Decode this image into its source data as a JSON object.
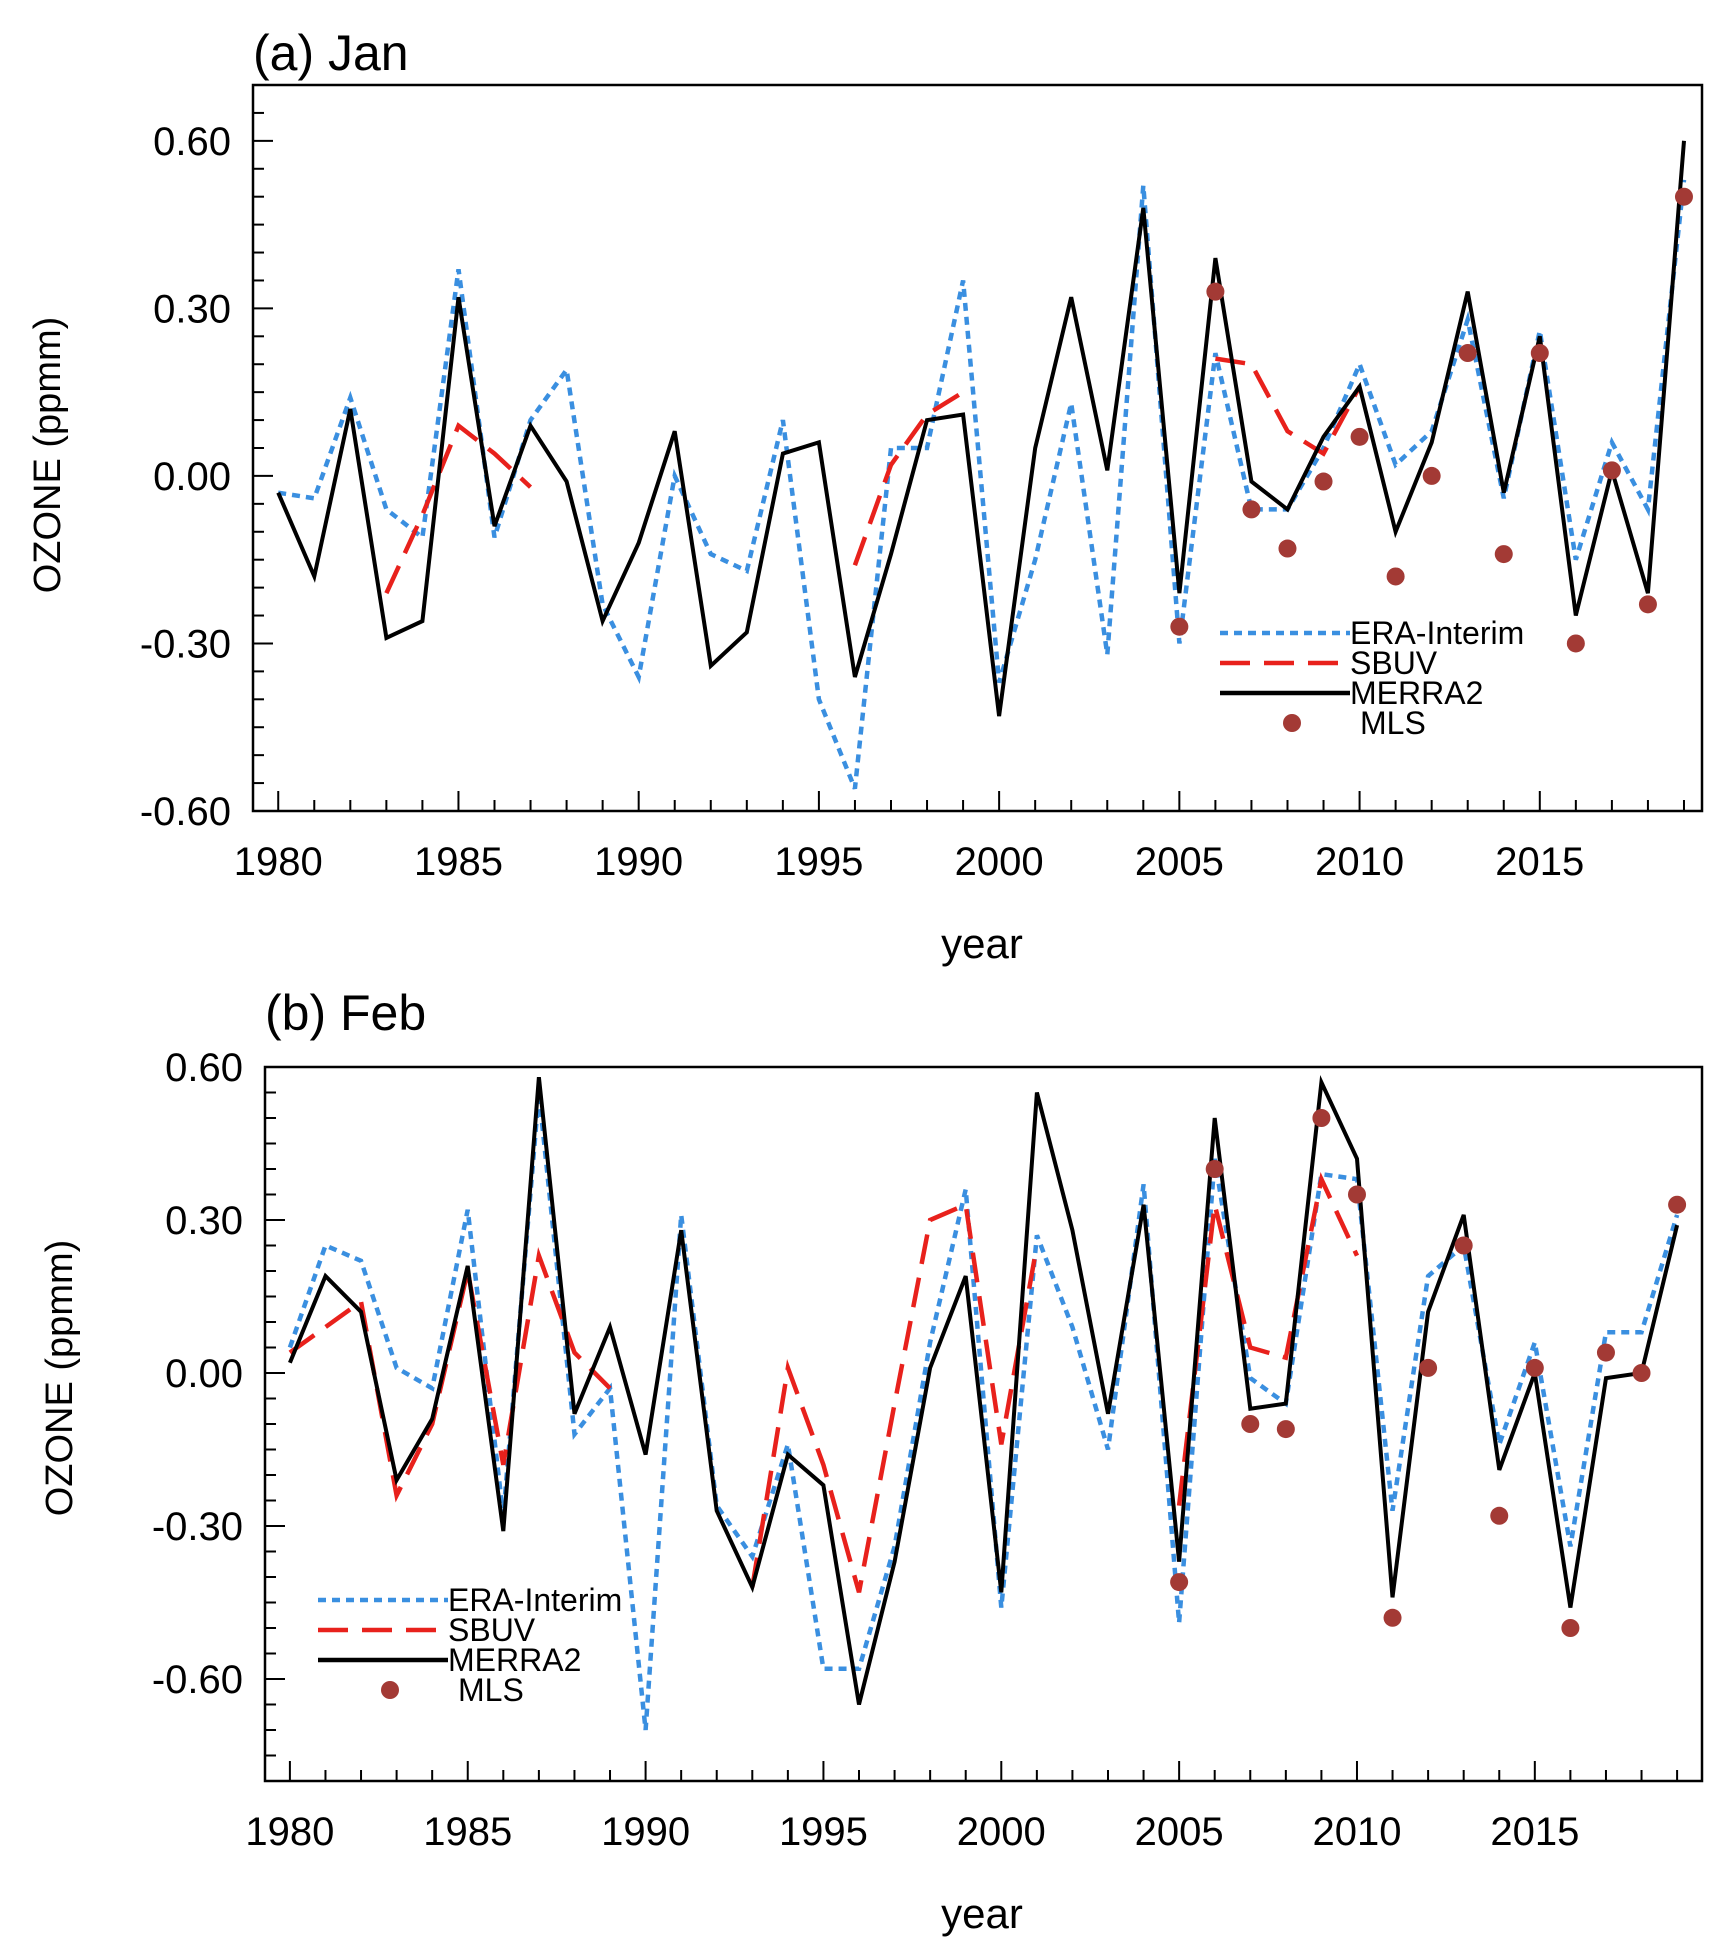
{
  "chart_data": [
    {
      "type": "line",
      "title": "(a) Jan",
      "xlabel": "year",
      "ylabel": "OZONE (ppmm)",
      "xlim": [
        1979.3,
        2019.5
      ],
      "ylim": [
        -0.6,
        0.7
      ],
      "xticks": [
        1980,
        1985,
        1990,
        1995,
        2000,
        2005,
        2010,
        2015
      ],
      "yticks": [
        0.6,
        0.3,
        0.0,
        -0.3,
        -0.6
      ],
      "ytick_labels": [
        "0.60",
        "0.30",
        "0.00",
        "-0.30",
        "-0.60"
      ],
      "legend_position": "bottom-right",
      "series": [
        {
          "name": "ERA-Interim",
          "color": "#3a8fe0",
          "style": "dotted",
          "x": [
            1980,
            1981,
            1982,
            1983,
            1984,
            1985,
            1986,
            1987,
            1988,
            1989,
            1990,
            1991,
            1992,
            1993,
            1994,
            1995,
            1996,
            1997,
            1998,
            1999,
            2000,
            2001,
            2002,
            2003,
            2004,
            2005,
            2006,
            2007,
            2008,
            2009,
            2010,
            2011,
            2012,
            2013,
            2014,
            2015,
            2016,
            2017,
            2018,
            2019
          ],
          "y": [
            -0.03,
            -0.04,
            0.14,
            -0.06,
            -0.11,
            0.37,
            -0.11,
            0.1,
            0.19,
            -0.23,
            -0.36,
            0.0,
            -0.14,
            -0.17,
            0.1,
            -0.4,
            -0.56,
            0.05,
            0.05,
            0.35,
            -0.37,
            -0.15,
            0.13,
            -0.32,
            0.52,
            -0.3,
            0.22,
            -0.06,
            -0.06,
            0.05,
            0.2,
            0.02,
            0.08,
            0.28,
            -0.04,
            0.26,
            -0.15,
            0.06,
            -0.06,
            0.53
          ]
        },
        {
          "name": "SBUV",
          "color": "#e8211c",
          "style": "dashed",
          "segments": [
            {
              "x": [
                1983,
                1984,
                1985,
                1986,
                1987
              ],
              "y": [
                -0.21,
                -0.07,
                0.09,
                0.04,
                -0.02
              ]
            },
            {
              "x": [
                1996,
                1997,
                1998,
                1999
              ],
              "y": [
                -0.16,
                0.02,
                0.11,
                0.15
              ]
            },
            {
              "x": [
                2006,
                2007,
                2008,
                2009,
                2010
              ],
              "y": [
                0.21,
                0.2,
                0.08,
                0.04,
                0.16
              ]
            }
          ]
        },
        {
          "name": "MERRA2",
          "color": "#000000",
          "style": "solid",
          "x": [
            1980,
            1981,
            1982,
            1983,
            1984,
            1985,
            1986,
            1987,
            1988,
            1989,
            1990,
            1991,
            1992,
            1993,
            1994,
            1995,
            1996,
            1997,
            1998,
            1999,
            2000,
            2001,
            2002,
            2003,
            2004,
            2005,
            2006,
            2007,
            2008,
            2009,
            2010,
            2011,
            2012,
            2013,
            2014,
            2015,
            2016,
            2017,
            2018,
            2019
          ],
          "y": [
            -0.03,
            -0.18,
            0.12,
            -0.29,
            -0.26,
            0.32,
            -0.09,
            0.09,
            -0.01,
            -0.26,
            -0.12,
            0.08,
            -0.34,
            -0.28,
            0.04,
            0.06,
            -0.36,
            -0.14,
            0.1,
            0.11,
            -0.43,
            0.05,
            0.32,
            0.01,
            0.48,
            -0.21,
            0.39,
            -0.01,
            -0.06,
            0.07,
            0.16,
            -0.1,
            0.06,
            0.33,
            -0.03,
            0.25,
            -0.25,
            0.01,
            -0.21,
            0.6
          ]
        },
        {
          "name": "MLS",
          "color": "#a33a35",
          "style": "markers",
          "x": [
            2005,
            2006,
            2007,
            2008,
            2009,
            2010,
            2011,
            2012,
            2013,
            2014,
            2015,
            2016,
            2017,
            2018,
            2019
          ],
          "y": [
            -0.27,
            0.33,
            -0.06,
            -0.13,
            -0.01,
            0.07,
            -0.18,
            0.0,
            0.22,
            -0.14,
            0.22,
            -0.3,
            0.01,
            -0.23,
            0.5
          ]
        }
      ]
    },
    {
      "type": "line",
      "title": "(b) Feb",
      "xlabel": "year",
      "ylabel": "OZONE (ppmm)",
      "xlim": [
        1979.3,
        2019.7
      ],
      "ylim": [
        -0.8,
        0.6
      ],
      "xticks": [
        1980,
        1985,
        1990,
        1995,
        2000,
        2005,
        2010,
        2015
      ],
      "yticks": [
        0.6,
        0.3,
        0.0,
        -0.3,
        -0.6
      ],
      "ytick_labels": [
        "0.60",
        "0.30",
        "0.00",
        "-0.30",
        "-0.60"
      ],
      "legend_position": "bottom-left",
      "series": [
        {
          "name": "ERA-Interim",
          "color": "#3a8fe0",
          "style": "dotted",
          "x": [
            1980,
            1981,
            1982,
            1983,
            1984,
            1985,
            1986,
            1987,
            1988,
            1989,
            1990,
            1991,
            1992,
            1993,
            1994,
            1995,
            1996,
            1997,
            1998,
            1999,
            2000,
            2001,
            2002,
            2003,
            2004,
            2005,
            2006,
            2007,
            2008,
            2009,
            2010,
            2011,
            2012,
            2013,
            2014,
            2015,
            2016,
            2017,
            2018,
            2019
          ],
          "y": [
            0.05,
            0.25,
            0.22,
            0.01,
            -0.03,
            0.32,
            -0.28,
            0.55,
            -0.12,
            -0.03,
            -0.7,
            0.31,
            -0.26,
            -0.36,
            -0.14,
            -0.58,
            -0.58,
            -0.34,
            0.06,
            0.36,
            -0.46,
            0.27,
            0.09,
            -0.15,
            0.37,
            -0.49,
            0.42,
            -0.01,
            -0.06,
            0.39,
            0.38,
            -0.27,
            0.19,
            0.25,
            -0.14,
            0.06,
            -0.34,
            0.08,
            0.08,
            0.31
          ]
        },
        {
          "name": "SBUV",
          "color": "#e8211c",
          "style": "dashed",
          "segments": [
            {
              "x": [
                1980,
                1981,
                1982,
                1983,
                1984,
                1985,
                1986,
                1987,
                1988,
                1989
              ],
              "y": [
                0.04,
                0.09,
                0.14,
                -0.24,
                -0.1,
                0.2,
                -0.18,
                0.23,
                0.04,
                -0.03
              ]
            },
            {
              "x": [
                1993,
                1994,
                1995,
                1996,
                1997,
                1998,
                1999,
                2000,
                2001
              ],
              "y": [
                -0.42,
                0.01,
                -0.18,
                -0.43,
                -0.06,
                0.3,
                0.33,
                -0.14,
                0.25
              ]
            },
            {
              "x": [
                2005,
                2006,
                2007,
                2008,
                2009,
                2010
              ],
              "y": [
                -0.26,
                0.33,
                0.05,
                0.03,
                0.38,
                0.23
              ]
            }
          ]
        },
        {
          "name": "MERRA2",
          "color": "#000000",
          "style": "solid",
          "x": [
            1980,
            1981,
            1982,
            1983,
            1984,
            1985,
            1986,
            1987,
            1988,
            1989,
            1990,
            1991,
            1992,
            1993,
            1994,
            1995,
            1996,
            1997,
            1998,
            1999,
            2000,
            2001,
            2002,
            2003,
            2004,
            2005,
            2006,
            2007,
            2008,
            2009,
            2010,
            2011,
            2012,
            2013,
            2014,
            2015,
            2016,
            2017,
            2018,
            2019
          ],
          "y": [
            0.02,
            0.19,
            0.12,
            -0.21,
            -0.09,
            0.21,
            -0.31,
            0.58,
            -0.08,
            0.09,
            -0.16,
            0.28,
            -0.27,
            -0.42,
            -0.16,
            -0.22,
            -0.65,
            -0.37,
            0.01,
            0.19,
            -0.43,
            0.55,
            0.28,
            -0.08,
            0.33,
            -0.37,
            0.5,
            -0.07,
            -0.06,
            0.57,
            0.42,
            -0.44,
            0.12,
            0.31,
            -0.19,
            0.0,
            -0.46,
            -0.01,
            0.0,
            0.29
          ]
        },
        {
          "name": "MLS",
          "color": "#a33a35",
          "style": "markers",
          "x": [
            2005,
            2006,
            2007,
            2008,
            2009,
            2010,
            2011,
            2012,
            2013,
            2014,
            2015,
            2016,
            2017,
            2018,
            2019
          ],
          "y": [
            -0.41,
            0.4,
            -0.1,
            -0.11,
            0.5,
            0.35,
            -0.48,
            0.01,
            0.25,
            -0.28,
            0.01,
            -0.5,
            0.04,
            0.0,
            0.33
          ]
        }
      ]
    }
  ]
}
